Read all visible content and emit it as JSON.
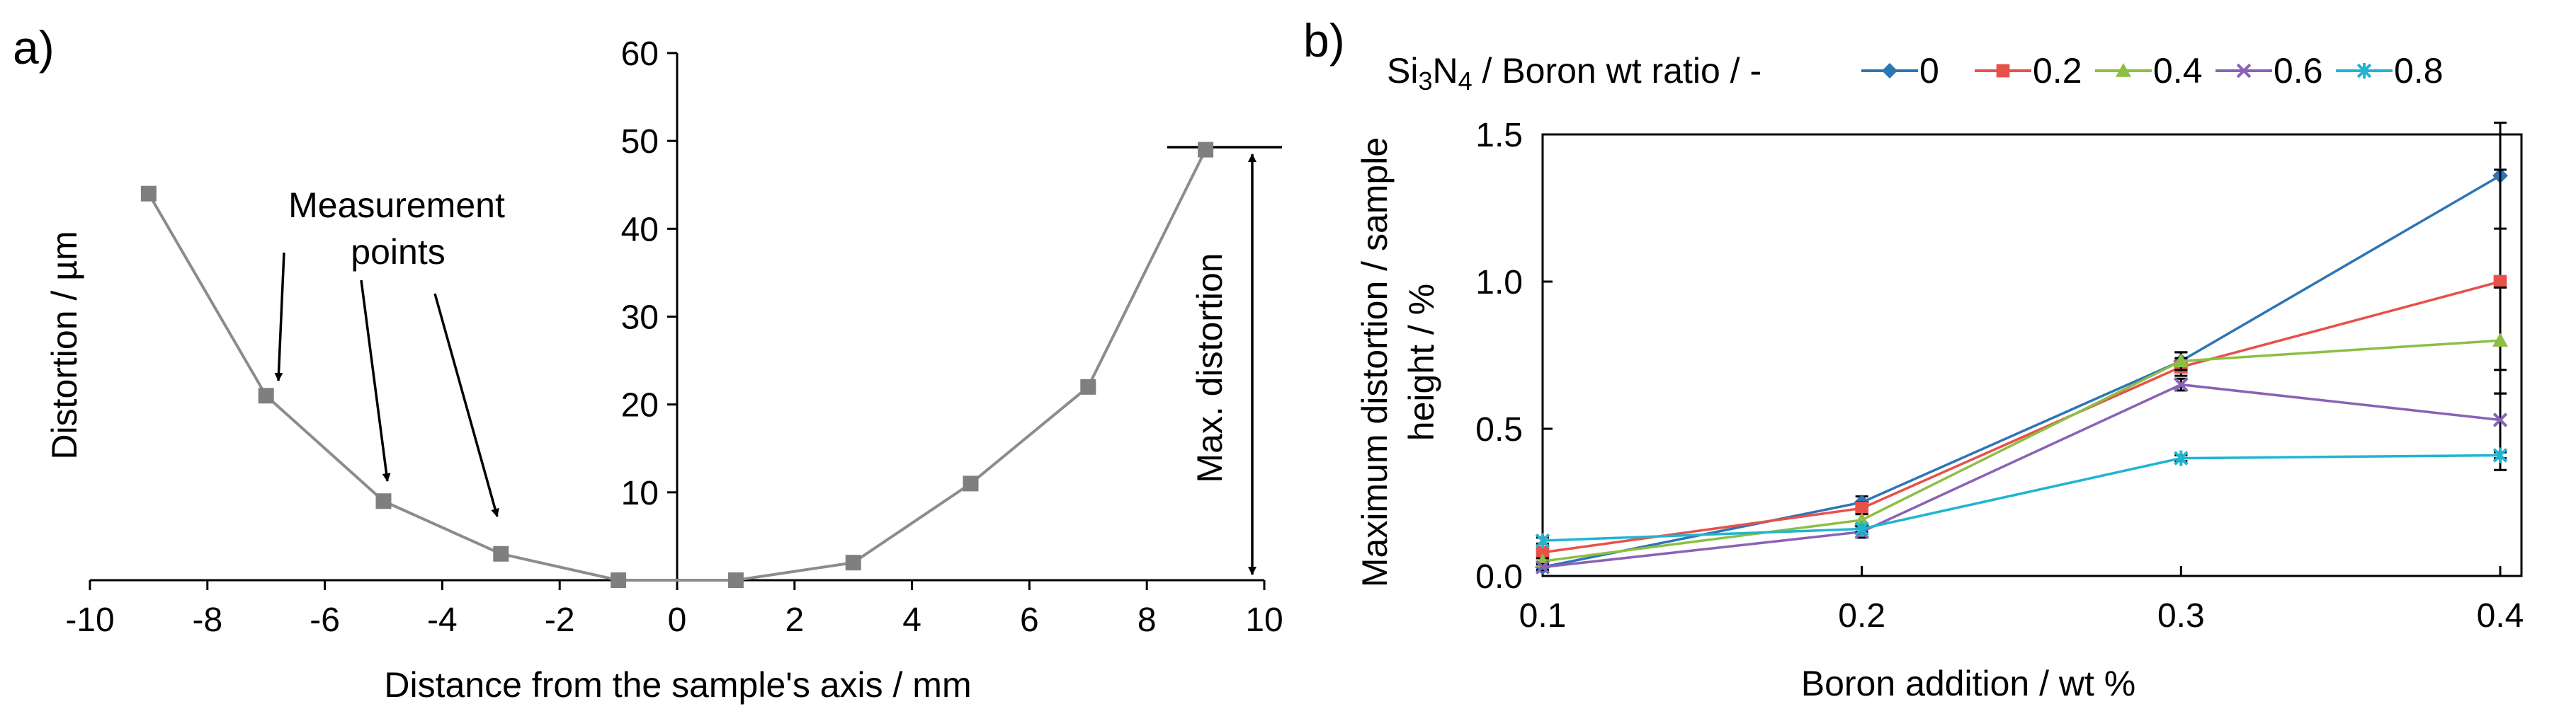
{
  "panel_a": {
    "label": "a)",
    "annotation_measurement_line1": "Measurement",
    "annotation_measurement_line2": "points",
    "annotation_max": "Max. distortion"
  },
  "panel_b": {
    "label": "b)",
    "legend_title_pre": "Si",
    "legend_title_sub1": "3",
    "legend_title_mid": "N",
    "legend_title_sub2": "4",
    "legend_title_post": " / Boron wt ratio / -"
  },
  "chart_data": [
    {
      "type": "line",
      "title": "",
      "xlabel": "Distance from the sample's axis / mm",
      "ylabel": "Distortion / µm",
      "xlim": [
        -10,
        10
      ],
      "ylim": [
        0,
        60
      ],
      "x_ticks": [
        "-10",
        "-8",
        "-6",
        "-4",
        "-2",
        "0",
        "2",
        "4",
        "6",
        "8",
        "10"
      ],
      "y_ticks": [
        "10",
        "20",
        "30",
        "40",
        "50",
        "60"
      ],
      "series": [
        {
          "name": "Distortion",
          "color": "#8c8c8c",
          "x": [
            -9,
            -7,
            -5,
            -3,
            -1,
            1,
            3,
            5,
            7,
            9
          ],
          "y": [
            44,
            21,
            9,
            3,
            0,
            0,
            2,
            11,
            22,
            49
          ]
        }
      ]
    },
    {
      "type": "line",
      "title": "",
      "xlabel": "Boron addition / wt %",
      "ylabel_line1": "Maximum distortion / sample",
      "ylabel_line2": "height / %",
      "xlim": [
        0.1,
        0.4
      ],
      "ylim": [
        0,
        1.5
      ],
      "categories": [
        "0.1",
        "0.2",
        "0.3",
        "0.4"
      ],
      "y_ticks": [
        "0.0",
        "0.5",
        "1.0",
        "1.5"
      ],
      "legend_position": "top",
      "series": [
        {
          "name": "0",
          "color": "#2e75b6",
          "marker": "diamond",
          "values": [
            0.03,
            0.25,
            0.73,
            1.36
          ],
          "error": [
            0.01,
            0.02,
            0.03,
            0.18
          ]
        },
        {
          "name": "0.2",
          "color": "#e8504a",
          "marker": "square",
          "values": [
            0.08,
            0.23,
            0.71,
            1.0
          ],
          "error": [
            0.01,
            0.02,
            0.03,
            0.38
          ]
        },
        {
          "name": "0.4",
          "color": "#8cbf43",
          "marker": "triangle",
          "values": [
            0.05,
            0.19,
            0.73,
            0.8
          ],
          "error": [
            0.01,
            0.02,
            0.03,
            0.18
          ]
        },
        {
          "name": "0.6",
          "color": "#8a62b6",
          "marker": "x",
          "values": [
            0.03,
            0.15,
            0.65,
            0.53
          ],
          "error": [
            0.01,
            0.02,
            0.02,
            0.17
          ]
        },
        {
          "name": "0.8",
          "color": "#1fb5d2",
          "marker": "asterisk",
          "values": [
            0.12,
            0.16,
            0.4,
            0.41
          ],
          "error": [
            0.01,
            0.01,
            0.01,
            0.01
          ]
        }
      ]
    }
  ]
}
